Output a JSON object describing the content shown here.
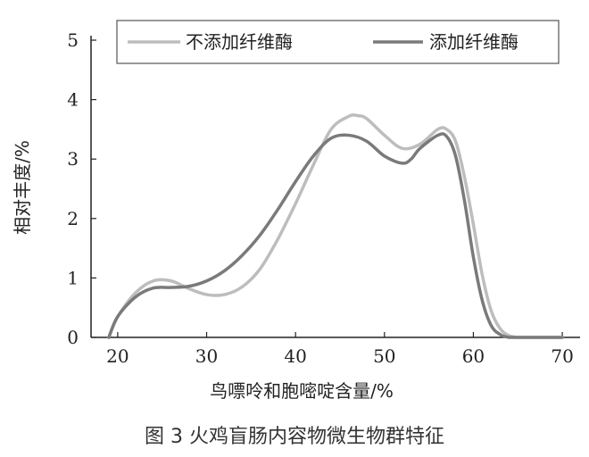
{
  "chart_data": {
    "type": "line",
    "caption": "图 3  火鸡盲肠内容物微生物群特征",
    "xlabel": "鸟嘌呤和胞嘧啶含量/%",
    "ylabel": "相对丰度/%",
    "xlim": [
      17,
      72
    ],
    "ylim": [
      0,
      5
    ],
    "xticks": [
      "20",
      "30",
      "40",
      "50",
      "60",
      "70"
    ],
    "yticks": [
      "0",
      "1",
      "2",
      "3",
      "4",
      "5"
    ],
    "legend_position": "top",
    "series": [
      {
        "name": "不添加纤维酶",
        "color": "#bdbdbd",
        "x": [
          19,
          20,
          22,
          24,
          26,
          28,
          30,
          32,
          34,
          36,
          38,
          40,
          42,
          44,
          46,
          47,
          48,
          50,
          52,
          54,
          56,
          57,
          58,
          59,
          60,
          61,
          62,
          63,
          64,
          65,
          66,
          68,
          70
        ],
        "y": [
          0,
          0.35,
          0.75,
          0.95,
          0.95,
          0.82,
          0.72,
          0.72,
          0.85,
          1.15,
          1.65,
          2.25,
          2.9,
          3.5,
          3.72,
          3.73,
          3.68,
          3.4,
          3.18,
          3.25,
          3.5,
          3.5,
          3.3,
          2.7,
          1.9,
          1.05,
          0.45,
          0.15,
          0.03,
          0,
          0,
          0,
          0
        ]
      },
      {
        "name": "添加纤维酶",
        "color": "#7a7a7a",
        "x": [
          19,
          20,
          22,
          24,
          26,
          28,
          30,
          32,
          34,
          36,
          38,
          40,
          42,
          44,
          46,
          48,
          50,
          52,
          53,
          54,
          56,
          57,
          58,
          59,
          60,
          61,
          62,
          63,
          64,
          65,
          66,
          68,
          70
        ],
        "y": [
          0,
          0.35,
          0.68,
          0.83,
          0.84,
          0.86,
          0.95,
          1.12,
          1.38,
          1.72,
          2.15,
          2.62,
          3.05,
          3.35,
          3.4,
          3.3,
          3.05,
          2.93,
          3.0,
          3.18,
          3.4,
          3.38,
          3.05,
          2.3,
          1.35,
          0.62,
          0.2,
          0.05,
          0,
          0,
          0,
          0,
          0
        ]
      }
    ]
  }
}
